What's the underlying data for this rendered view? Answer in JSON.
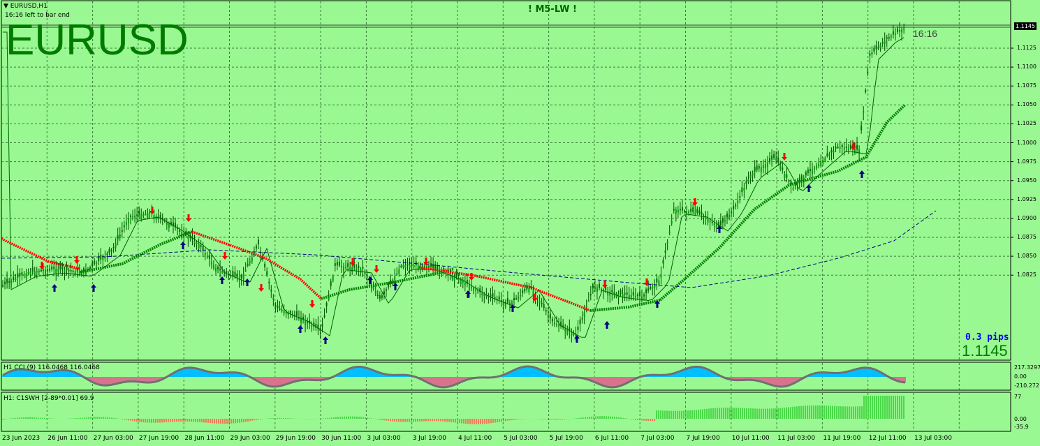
{
  "header": {
    "window_title": "EURUSD,H1",
    "bar_timer_text": "16:16 left to bar end",
    "symbol_big": "EURUSD",
    "strategy_name": "! M5-LW !",
    "countdown": "16:16"
  },
  "info": {
    "spread": "0.3 pips",
    "current_price": "1.1145"
  },
  "price_axis": {
    "labels": [
      "1.1125",
      "1.1100",
      "1.1075",
      "1.1050",
      "1.1025",
      "1.1000",
      "1.0975",
      "1.0950",
      "1.0925",
      "1.0900",
      "1.0875",
      "1.0850",
      "1.0825"
    ],
    "current": "1.1145"
  },
  "time_axis": {
    "labels": [
      "23 Jun 2023",
      "26 Jun 11:00",
      "27 Jun 03:00",
      "27 Jun 19:00",
      "28 Jun 11:00",
      "29 Jun 03:00",
      "29 Jun 19:00",
      "30 Jun 11:00",
      "3 Jul 03:00",
      "3 Jul 19:00",
      "4 Jul 11:00",
      "5 Jul 03:00",
      "5 Jul 19:00",
      "6 Jul 11:00",
      "7 Jul 03:00",
      "7 Jul 19:00",
      "10 Jul 11:00",
      "11 Jul 03:00",
      "11 Jul 19:00",
      "12 Jul 11:00",
      "13 Jul 03:00"
    ]
  },
  "cci_panel": {
    "title": "H1 CCI (9) 116.0468 116.0468",
    "labels": [
      "217.3297",
      "0.00",
      "-210.272"
    ]
  },
  "c1swh_panel": {
    "title": "H1: C1SWH [2-89*0.01]  69.9",
    "labels": [
      "77",
      "0.00",
      "-35.9"
    ]
  },
  "colors": {
    "background": "#99f891",
    "bull_trend": "#008000",
    "bear_trend": "#ff0000",
    "ma_slow": "#00008b",
    "ma_fast": "#006400",
    "arrow_up": "#000080",
    "arrow_down": "#ff0000",
    "cci_pos": "#00bfff",
    "cci_neg": "#d9738d",
    "hist_pos": "#32cd32",
    "hist_neg": "#ff5a4a"
  }
}
